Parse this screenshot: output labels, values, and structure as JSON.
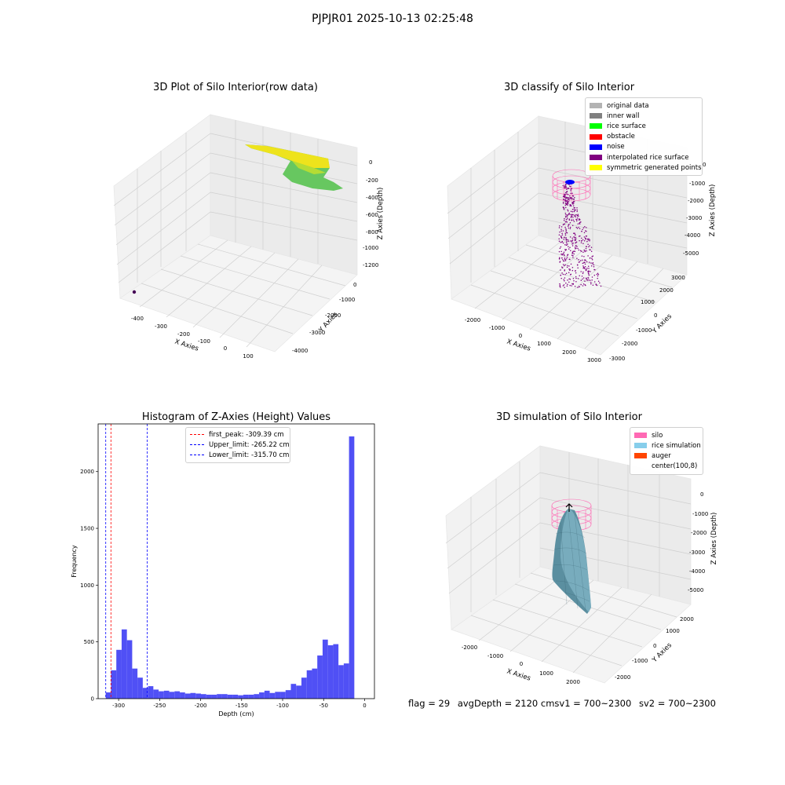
{
  "suptitle": "PJPJR01 2025-10-13 02:25:48",
  "footer": {
    "flag": "flag = 29",
    "avg": "avgDepth = 2120 cmsv1 = 700~2300",
    "sv2": "sv2 = 700~2300"
  },
  "chart_data": [
    {
      "type": "scatter3d",
      "title": "3D Plot of Silo Interior(row data)",
      "xlabel": "X Axies",
      "ylabel": "Y Axies",
      "zlabel": "Z Axies (Depth)",
      "x_ticks": [
        "-400",
        "-300",
        "-200",
        "-100",
        "0",
        "100"
      ],
      "y_ticks": [
        "-4000",
        "-3000",
        "-2000",
        "-1000",
        "0"
      ],
      "z_ticks": [
        "0",
        "-200",
        "-400",
        "-600",
        "-800",
        "-1000",
        "-1200"
      ],
      "colors": {
        "high": "#f6e620",
        "low": "#3fbc73",
        "outlier": "#440154"
      }
    },
    {
      "type": "scatter3d",
      "title": "3D classify of Silo Interior",
      "xlabel": "X Axies",
      "ylabel": "Y Axies",
      "zlabel": "Z Axies (Depth)",
      "x_ticks": [
        "-2000",
        "-1000",
        "0",
        "1000",
        "2000",
        "3000"
      ],
      "y_ticks": [
        "-3000",
        "-2000",
        "-1000",
        "0",
        "1000",
        "2000",
        "3000"
      ],
      "z_ticks": [
        "0",
        "-1000",
        "-2000",
        "-3000",
        "-4000",
        "-5000"
      ],
      "legend": [
        {
          "label": "original data",
          "color": "#b3b3b3"
        },
        {
          "label": "inner wall",
          "color": "#808080"
        },
        {
          "label": "rice surface",
          "color": "#00ff00"
        },
        {
          "label": "obstacle",
          "color": "#ff0000"
        },
        {
          "label": "noise",
          "color": "#0000ff"
        },
        {
          "label": "interpolated rice surface",
          "color": "#800080"
        },
        {
          "label": "symmetric generated points",
          "color": "#ffff00"
        }
      ]
    },
    {
      "type": "bar",
      "title": "Histogram of Z-Axies (Height) Values",
      "xlabel": "Depth (cm)",
      "ylabel": "Frequency",
      "xlim": [
        -325,
        12
      ],
      "ylim": [
        0,
        2420
      ],
      "x_ticks": [
        -300,
        -250,
        -200,
        -150,
        -100,
        -50,
        0
      ],
      "y_ticks": [
        0,
        500,
        1000,
        1500,
        2000
      ],
      "bar_color": "#5050f5",
      "bins_start": -315.7,
      "bin_width": 6.45,
      "values": [
        55,
        250,
        430,
        610,
        515,
        265,
        185,
        95,
        110,
        80,
        65,
        70,
        60,
        65,
        55,
        45,
        50,
        45,
        40,
        35,
        35,
        40,
        40,
        35,
        35,
        30,
        35,
        35,
        40,
        55,
        70,
        50,
        60,
        60,
        75,
        130,
        115,
        185,
        250,
        265,
        380,
        520,
        470,
        480,
        295,
        310,
        2310
      ],
      "vlines": [
        {
          "label": "first_peak: -309.39 cm",
          "x": -309.39,
          "color": "#ff0000"
        },
        {
          "label": "Upper_limit: -265.22 cm",
          "x": -265.22,
          "color": "#0000ff"
        },
        {
          "label": "Lower_limit: -315.70 cm",
          "x": -315.7,
          "color": "#0000ff"
        }
      ]
    },
    {
      "type": "surface3d",
      "title": "3D simulation of Silo Interior",
      "xlabel": "X Axies",
      "ylabel": "Y Axies",
      "zlabel": "Z Axies (Depth)",
      "x_ticks": [
        "-2000",
        "-1000",
        "0",
        "1000",
        "2000"
      ],
      "y_ticks": [
        "-2000",
        "-1000",
        "0",
        "1000",
        "2000"
      ],
      "z_ticks": [
        "0",
        "-1000",
        "-2000",
        "-3000",
        "-4000",
        "-5000"
      ],
      "legend": [
        {
          "label": "silo",
          "color": "#ff69b4"
        },
        {
          "label": "rice simulation",
          "color": "#87ceeb"
        },
        {
          "label": "auger",
          "color": "#ff4500"
        },
        {
          "label": "center(100,8)",
          "color": ""
        }
      ]
    }
  ]
}
